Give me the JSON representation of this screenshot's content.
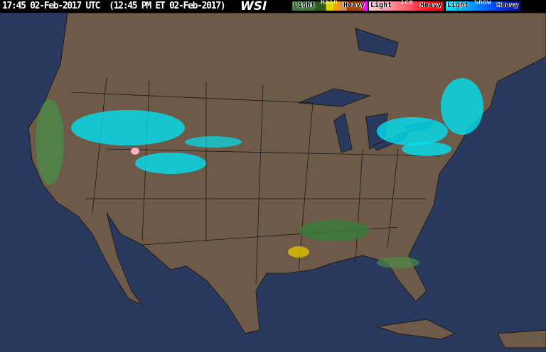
{
  "header": {
    "timestamp": "17:45 02-Feb-2017 UTC  (12:45 PM ET 02-Feb-2017)",
    "logo": "WSI"
  },
  "legend": [
    {
      "type": "Rain",
      "light": "Light",
      "heavy": "Heavy",
      "colors": [
        "#3c7a3c",
        "#2e5a1e",
        "#e0d000",
        "#f0a000",
        "#d09060",
        "#b04000",
        "#ff00ff"
      ]
    },
    {
      "type": "Ice",
      "light": "Light",
      "heavy": "Heavy",
      "colors": [
        "#ffd0d8",
        "#ff9aa8",
        "#ff6070",
        "#ff2030",
        "#e00000"
      ]
    },
    {
      "type": "Snow",
      "light": "Light",
      "heavy": "Heavy",
      "colors": [
        "#00e8f8",
        "#00b0ff",
        "#0070ff",
        "#0030e0",
        "#0010a0"
      ]
    }
  ],
  "colors": {
    "ocean": "#2a3a5e",
    "land": "#6e5a48",
    "borders": "#1a1a1a"
  }
}
